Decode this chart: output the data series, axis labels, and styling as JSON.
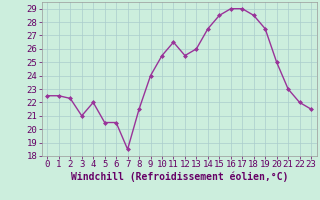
{
  "x": [
    0,
    1,
    2,
    3,
    4,
    5,
    6,
    7,
    8,
    9,
    10,
    11,
    12,
    13,
    14,
    15,
    16,
    17,
    18,
    19,
    20,
    21,
    22,
    23
  ],
  "y": [
    22.5,
    22.5,
    22.3,
    21.0,
    22.0,
    20.5,
    20.5,
    18.5,
    21.5,
    24.0,
    25.5,
    26.5,
    25.5,
    26.0,
    27.5,
    28.5,
    29.0,
    29.0,
    28.5,
    27.5,
    25.0,
    23.0,
    22.0,
    21.5
  ],
  "line_color": "#993399",
  "marker": "D",
  "marker_size": 2.0,
  "background_color": "#cceedd",
  "grid_color": "#aacccc",
  "xlabel": "Windchill (Refroidissement éolien,°C)",
  "xlabel_fontsize": 7,
  "ylim": [
    18,
    29.5
  ],
  "yticks": [
    18,
    19,
    20,
    21,
    22,
    23,
    24,
    25,
    26,
    27,
    28,
    29
  ],
  "xticks": [
    0,
    1,
    2,
    3,
    4,
    5,
    6,
    7,
    8,
    9,
    10,
    11,
    12,
    13,
    14,
    15,
    16,
    17,
    18,
    19,
    20,
    21,
    22,
    23
  ],
  "tick_fontsize": 6.5,
  "line_width": 1.0,
  "fig_width": 3.2,
  "fig_height": 2.0,
  "dpi": 100
}
